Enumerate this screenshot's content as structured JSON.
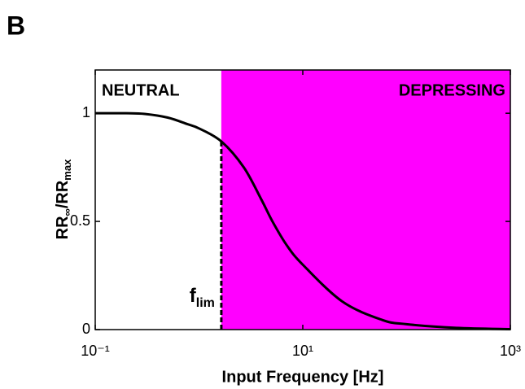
{
  "chart_data": {
    "type": "line",
    "panel_label": "B",
    "x_label": "Input Frequency [Hz]",
    "y_label": [
      "RR",
      "∞",
      "/RR",
      "max"
    ],
    "x_log": true,
    "xlim": [
      0.1,
      1000
    ],
    "xticks": [
      {
        "value": 0.1,
        "label": "10⁻¹"
      },
      {
        "value": 10,
        "label": "10¹"
      },
      {
        "value": 1000,
        "label": "10³"
      }
    ],
    "ylim": [
      0,
      1.2
    ],
    "yticks": [
      0,
      0.5,
      1
    ],
    "regions": [
      {
        "label": "NEUTRAL",
        "from": 0.1,
        "to": 1.64,
        "color": "#ffffff"
      },
      {
        "label": "DEPRESSING",
        "from": 1.64,
        "to": 1000,
        "color": "#ff00ff"
      }
    ],
    "flim": {
      "label": [
        "f",
        "lim"
      ],
      "x": 1.64,
      "y": 0.87
    },
    "x": [
      0.1,
      0.2,
      0.3,
      0.5,
      0.77,
      1.0,
      1.64,
      2.7,
      4.0,
      5.1,
      7.0,
      10,
      24,
      58,
      100,
      300,
      1000
    ],
    "values": [
      1,
      1,
      0.997,
      0.98,
      0.95,
      0.93,
      0.87,
      0.75,
      0.6,
      0.5,
      0.39,
      0.3,
      0.13,
      0.045,
      0.025,
      0.008,
      0.002
    ],
    "color": "#000000"
  }
}
